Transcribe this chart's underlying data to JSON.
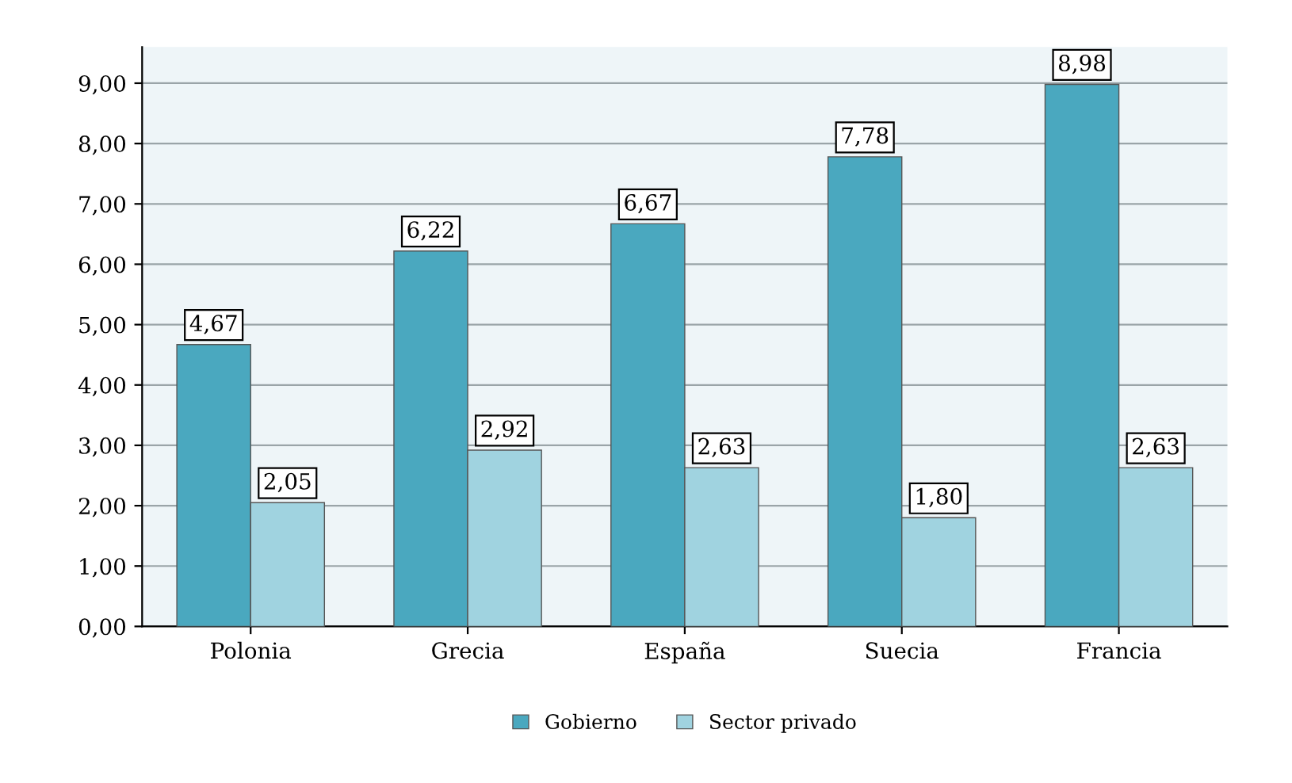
{
  "chart_data": {
    "type": "bar",
    "categories": [
      "Polonia",
      "Grecia",
      "España",
      "Suecia",
      "Francia"
    ],
    "series": [
      {
        "name": "Gobierno",
        "color": "#4aa8bf",
        "values": [
          4.67,
          6.22,
          6.67,
          7.78,
          8.98
        ],
        "value_labels": [
          "4,67",
          "6,22",
          "6,67",
          "7,78",
          "8,98"
        ]
      },
      {
        "name": "Sector privado",
        "color": "#a0d3e0",
        "values": [
          2.05,
          2.92,
          2.63,
          1.8,
          2.63
        ],
        "value_labels": [
          "2,05",
          "2,92",
          "2,63",
          "1,80",
          "2,63"
        ]
      }
    ],
    "ylim": [
      0,
      9.6
    ],
    "yticks": [
      {
        "value": 0,
        "label": "0,00"
      },
      {
        "value": 1,
        "label": "1,00"
      },
      {
        "value": 2,
        "label": "2,00"
      },
      {
        "value": 3,
        "label": "3,00"
      },
      {
        "value": 4,
        "label": "4,00"
      },
      {
        "value": 5,
        "label": "5,00"
      },
      {
        "value": 6,
        "label": "6,00"
      },
      {
        "value": 7,
        "label": "7,00"
      },
      {
        "value": 8,
        "label": "8,00"
      },
      {
        "value": 9,
        "label": "9,00"
      }
    ],
    "grid": "y",
    "legend": "bottom"
  }
}
